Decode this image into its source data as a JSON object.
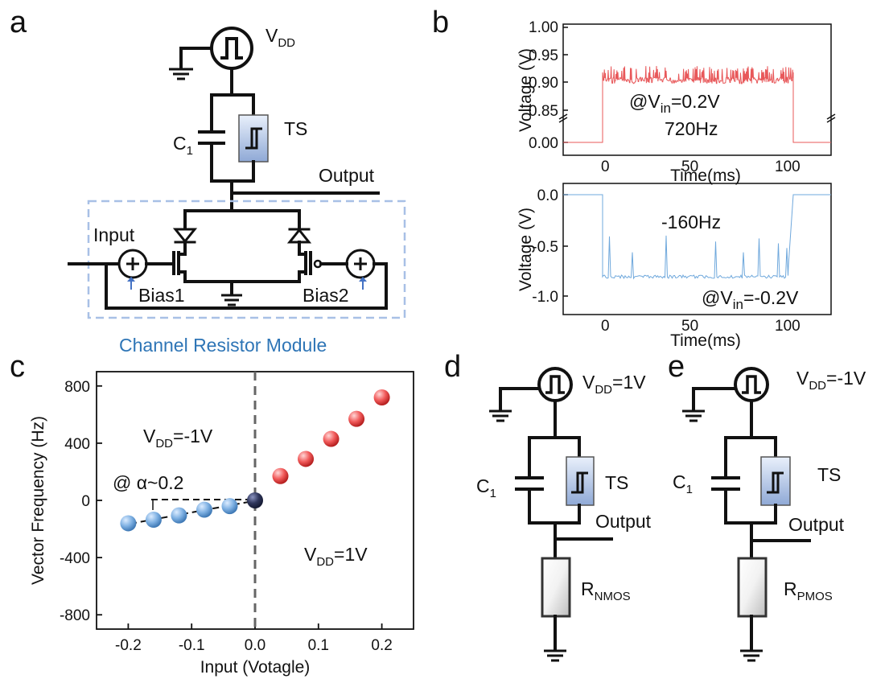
{
  "panels": {
    "a": {
      "letter": "a",
      "vdd": "V",
      "vdd_sub": "DD",
      "c1": "C",
      "c1_sub": "1",
      "ts": "TS",
      "output": "Output",
      "input": "Input",
      "bias1": "Bias1",
      "bias2": "Bias2",
      "module": "Channel Resistor Module",
      "module_color": "#2e75b6"
    },
    "b": {
      "letter": "b",
      "top": {
        "ylabel": "Voltage (V)",
        "xlabel": "Time(ms)",
        "yticks": [
          "1.00",
          "0.95",
          "0.90",
          "0.85",
          "0.00"
        ],
        "xticks": [
          "0",
          "50",
          "100"
        ],
        "note_prefix": "@V",
        "note_sub": "in",
        "note_suffix": "=0.2V",
        "freq": "720Hz",
        "color": "#e8585a"
      },
      "bottom": {
        "ylabel": "Voltage (V)",
        "xlabel": "Time(ms)",
        "yticks": [
          "0.0",
          "-0.5",
          "-1.0"
        ],
        "xticks": [
          "0",
          "50",
          "100"
        ],
        "note_prefix": "@V",
        "note_sub": "in",
        "note_suffix": "=-0.2V",
        "freq": "-160Hz",
        "color": "#6fa8dc"
      }
    },
    "c": {
      "letter": "c",
      "vdd_neg_main": "V",
      "vdd_neg_sub": "DD",
      "vdd_neg_val": "=-1V",
      "vdd_pos_main": "V",
      "vdd_pos_sub": "DD",
      "vdd_pos_val": "=1V",
      "alpha": "@ α~0.2"
    },
    "d": {
      "letter": "d",
      "vdd_main": "V",
      "vdd_sub": "DD",
      "vdd_val": "=1V",
      "c1": "C",
      "c1_sub": "1",
      "ts": "TS",
      "output": "Output",
      "r_main": "R",
      "r_sub": "NMOS"
    },
    "e": {
      "letter": "e",
      "vdd_main": "V",
      "vdd_sub": "DD",
      "vdd_val": "=-1V",
      "c1": "C",
      "c1_sub": "1",
      "ts": "TS",
      "output": "Output",
      "r_main": "R",
      "r_sub": "PMOS"
    }
  },
  "chart_data": {
    "type": "scatter",
    "xlabel": "Input (Votagle)",
    "ylabel": "Vector Frequency (Hz)",
    "xlim": [
      -0.25,
      0.25
    ],
    "ylim": [
      -900,
      900
    ],
    "xticks": [
      -0.2,
      -0.1,
      0.0,
      0.1,
      0.2
    ],
    "xtick_labels": [
      "-0.2",
      "-0.1",
      "0.0",
      "0.1",
      "0.2"
    ],
    "yticks": [
      -800,
      -400,
      0,
      400,
      800
    ],
    "ytick_labels": [
      "-800",
      "-400",
      "0",
      "400",
      "800"
    ],
    "series": [
      {
        "x": [
          -0.2,
          -0.16,
          -0.12,
          -0.08,
          -0.04
        ],
        "y": [
          -160,
          -135,
          -105,
          -65,
          -40
        ],
        "color": "#6fa8dc"
      },
      {
        "x": [
          0.0
        ],
        "y": [
          0
        ],
        "color": "#2a2f4a"
      },
      {
        "x": [
          0.04,
          0.08,
          0.12,
          0.16,
          0.2
        ],
        "y": [
          170,
          290,
          430,
          570,
          720
        ],
        "color": "#ee4b4b"
      }
    ],
    "zero_line": "dashed"
  }
}
